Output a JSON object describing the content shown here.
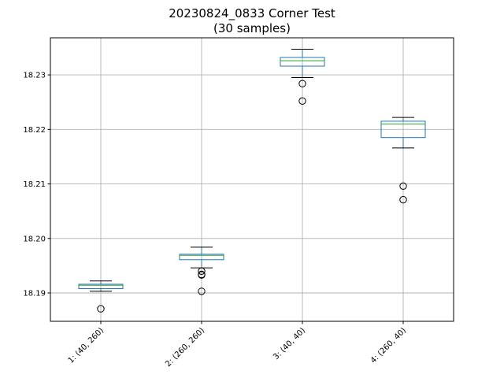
{
  "chart_data": {
    "type": "box",
    "title_line1": "20230824_0833 Corner Test",
    "title_line2": "(30 samples)",
    "xlabel": "",
    "ylabel": "",
    "ylim": [
      18.1848,
      18.2368
    ],
    "yticks": [
      18.19,
      18.2,
      18.21,
      18.22,
      18.23
    ],
    "ytick_labels": [
      "18.19",
      "18.20",
      "18.21",
      "18.22",
      "18.23"
    ],
    "grid": true,
    "categories": [
      "1: (40, 260)",
      "2: (260, 260)",
      "3: (40, 40)",
      "4: (260, 40)"
    ],
    "boxes": [
      {
        "whisker_low": 18.1903,
        "q1": 18.1908,
        "median": 18.1914,
        "q3": 18.1916,
        "whisker_high": 18.1922,
        "outliers": [
          18.1871
        ]
      },
      {
        "whisker_low": 18.1946,
        "q1": 18.1961,
        "median": 18.1969,
        "q3": 18.1971,
        "whisker_high": 18.1984,
        "outliers": [
          18.194,
          18.1933,
          18.1934,
          18.1903
        ]
      },
      {
        "whisker_low": 18.2295,
        "q1": 18.2316,
        "median": 18.2326,
        "q3": 18.2332,
        "whisker_high": 18.2347,
        "outliers": [
          18.2284,
          18.2252
        ]
      },
      {
        "whisker_low": 18.2166,
        "q1": 18.2185,
        "median": 18.221,
        "q3": 18.2215,
        "whisker_high": 18.2222,
        "outliers": [
          18.2096,
          18.2071
        ]
      }
    ],
    "colors": {
      "box": "#1f77b4",
      "median": "#2ca02c",
      "whisker": "#1f77b4",
      "cap": "#000000",
      "grid": "#b0b0b0",
      "flier": "#000000"
    }
  }
}
